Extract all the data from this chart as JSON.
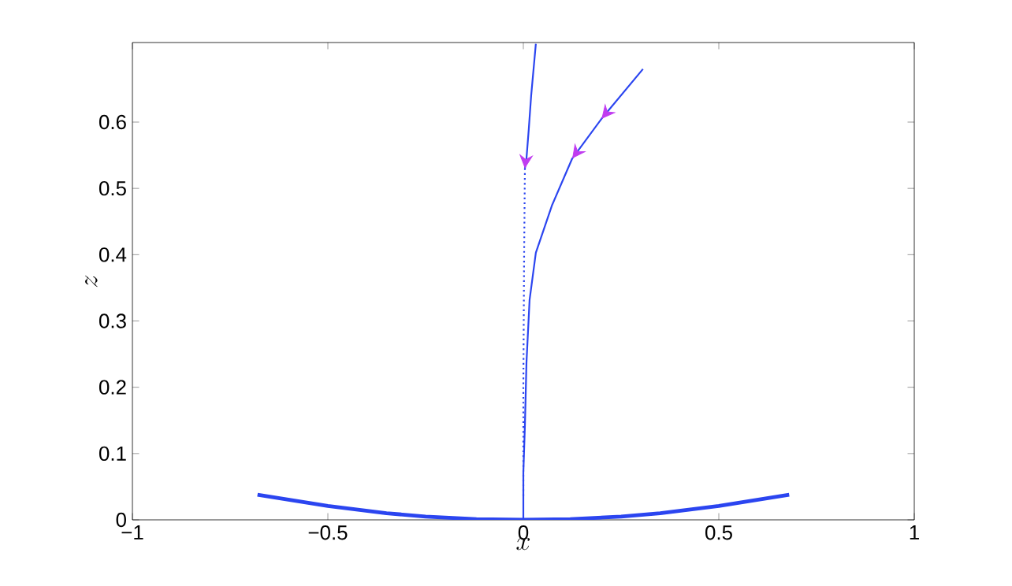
{
  "chart_data": {
    "type": "line",
    "xlabel": "x",
    "ylabel": "z",
    "xlim": [
      -1,
      1
    ],
    "ylim": [
      0,
      0.72
    ],
    "xticks": [
      {
        "value": -1,
        "label": "−1"
      },
      {
        "value": -0.5,
        "label": "−0.5"
      },
      0,
      0.5,
      1
    ],
    "yticks": [
      0,
      0.1,
      0.2,
      0.3,
      0.4,
      0.5,
      0.6
    ],
    "grid": false,
    "marker": "none",
    "series": [
      {
        "color": "#2b45f0",
        "line_style": "solid",
        "x": [
          -0.68,
          -0.5,
          -0.35,
          -0.25,
          -0.12,
          0,
          0.12,
          0.25,
          0.35,
          0.5,
          0.68
        ],
        "values": [
          0.038,
          0.021,
          0.01,
          0.005,
          0.001,
          0,
          0.001,
          0.005,
          0.01,
          0.021,
          0.038
        ]
      },
      {
        "color": "#2b45f0",
        "line_style": "solid",
        "x": [
          0,
          0,
          0.004,
          0.008,
          0.016,
          0.032,
          0.073,
          0.125,
          0.2,
          0.306
        ],
        "values": [
          0,
          0.071,
          0.142,
          0.237,
          0.332,
          0.403,
          0.474,
          0.545,
          0.605,
          0.68
        ]
      },
      {
        "color": "#2b45f0",
        "line_style": "dotted",
        "x": [
          0,
          0,
          0.002,
          0.004
        ],
        "values": [
          0.036,
          0.2,
          0.4,
          0.53
        ]
      },
      {
        "color": "#2b45f0",
        "line_style": "solid",
        "x": [
          0.004,
          0.008,
          0.014,
          0.02,
          0.032
        ],
        "values": [
          0.53,
          0.545,
          0.59,
          0.64,
          0.718
        ]
      }
    ]
  }
}
